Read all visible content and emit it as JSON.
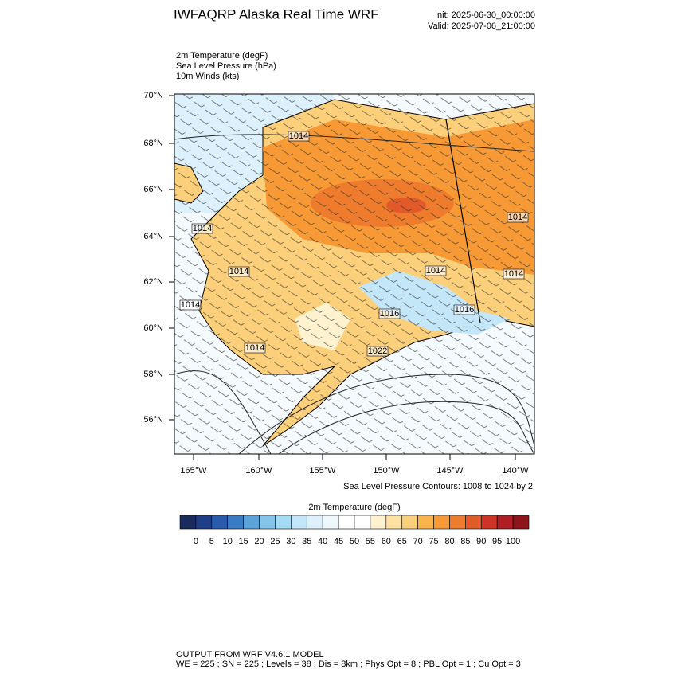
{
  "header": {
    "title": "IWFAQRP Alaska Real Time WRF",
    "init": "Init: 2025-06-30_00:00:00",
    "valid": "Valid: 2025-07-06_21:00:00"
  },
  "fields": [
    "2m Temperature   (degF)",
    "Sea Level Pressure   (hPa)",
    "10m Winds   (kts)"
  ],
  "map": {
    "lat_labels": [
      "70°N",
      "68°N",
      "66°N",
      "64°N",
      "62°N",
      "60°N",
      "58°N",
      "56°N"
    ],
    "lon_labels": [
      "165°W",
      "160°W",
      "155°W",
      "150°W",
      "145°W",
      "140°W"
    ],
    "contour_labels": [
      "1014",
      "1014",
      "1014",
      "1014",
      "1014",
      "1014",
      "1014",
      "1016",
      "1016",
      "1014",
      "1022"
    ]
  },
  "contour_note": "Sea Level Pressure Contours: 1008 to 1024 by 2",
  "colorbar": {
    "title": "2m Temperature  (degF)",
    "labels": [
      "0",
      "5",
      "10",
      "15",
      "20",
      "25",
      "30",
      "35",
      "40",
      "45",
      "50",
      "55",
      "60",
      "65",
      "70",
      "75",
      "80",
      "85",
      "90",
      "95",
      "100"
    ],
    "colors": [
      "#1b2a5c",
      "#1f3e87",
      "#2a5aab",
      "#3a7cc4",
      "#5ba4d9",
      "#85c4eb",
      "#a6dbf5",
      "#c3e7f8",
      "#dcf1fb",
      "#eef8fd",
      "#ffffff",
      "#ffffff",
      "#fff2cf",
      "#ffe2a2",
      "#fccf7a",
      "#fbb44b",
      "#f79a36",
      "#ef7b2c",
      "#e2592a",
      "#ce3326",
      "#b11d22",
      "#8d1419"
    ]
  },
  "footer": [
    "OUTPUT FROM WRF V4.6.1 MODEL",
    "WE = 225 ; SN = 225 ; Levels = 38 ; Dis = 8km ; Phys Opt = 8 ; PBL Opt = 1 ; Cu Opt = 3"
  ]
}
